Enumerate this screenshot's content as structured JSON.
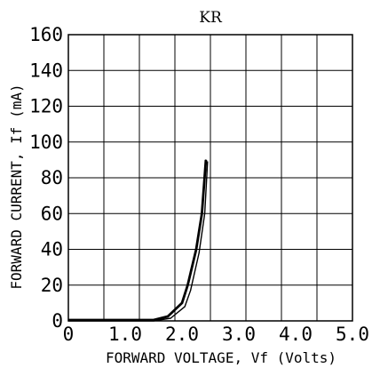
{
  "chart_data": {
    "type": "line",
    "title": "KR",
    "xlabel": "FORWARD VOLTAGE, Vf (Volts)",
    "ylabel": "FORWARD CURRENT, If (mA)",
    "xlim": [
      0,
      5
    ],
    "ylim": [
      0,
      160
    ],
    "x_ticks": [
      0,
      1,
      2,
      3,
      4,
      5
    ],
    "x_tick_labels": [
      "0",
      "1.0",
      "2.0",
      "3.0",
      "4.0",
      "5.0"
    ],
    "y_ticks": [
      0,
      20,
      40,
      60,
      80,
      100,
      120,
      140,
      160
    ],
    "y_tick_labels": [
      "0",
      "20",
      "40",
      "60",
      "80",
      "100",
      "120",
      "140",
      "160"
    ],
    "grid": true,
    "series": [
      {
        "x": [
          0,
          1.5,
          1.75,
          2.0,
          2.1,
          2.25,
          2.35,
          2.42
        ],
        "y": [
          0.5,
          0.5,
          2.5,
          10,
          20,
          40,
          60,
          90
        ]
      },
      {
        "x": [
          0,
          1.5,
          1.8,
          2.05,
          2.15,
          2.3,
          2.4,
          2.45
        ],
        "y": [
          0,
          0,
          1.5,
          8,
          17,
          38,
          60,
          89
        ]
      }
    ],
    "line_color": "#000000"
  }
}
